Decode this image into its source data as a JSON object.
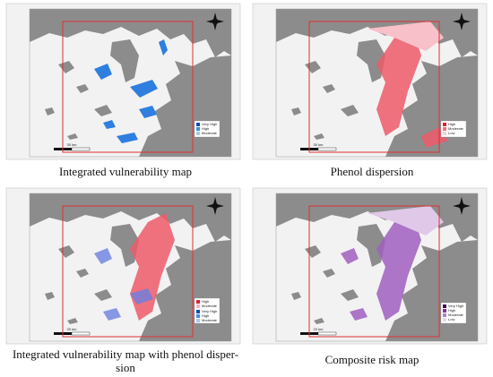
{
  "panels": [
    {
      "caption": [
        "Integrated vulnerability map"
      ],
      "legend": [
        "Very High",
        "High",
        "Moderate"
      ],
      "scale": "30 km"
    },
    {
      "caption": [
        "Phenol dispersion"
      ],
      "legend": [
        "High",
        "Moderate",
        "Low"
      ],
      "scale": "30 km"
    },
    {
      "caption": [
        "Integrated vulnerability map with phenol disper-",
        "sion"
      ],
      "legend": [
        "High",
        "Moderate",
        "Very High",
        "High",
        "Moderate"
      ],
      "scale": "20 km"
    },
    {
      "caption": [
        "Composite risk map"
      ],
      "legend": [
        "Very High",
        "High",
        "Moderate",
        "Low"
      ],
      "scale": "20 km"
    }
  ]
}
